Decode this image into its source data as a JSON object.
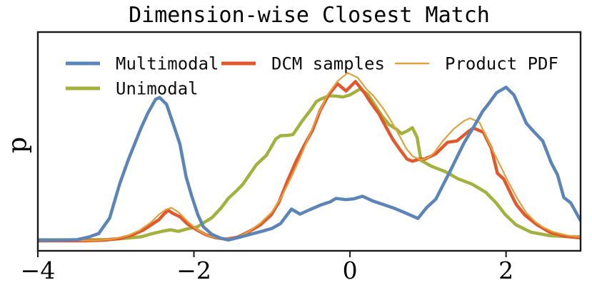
{
  "figure": {
    "background": "#ffffff",
    "axes_edge_color": "#1a1a1a"
  },
  "chart_data": {
    "type": "line",
    "title": "Dimension-wise Closest Match",
    "xlabel": "",
    "ylabel": "p",
    "xlim": [
      -4,
      2.955
    ],
    "ylim": [
      -0.05,
      1.22
    ],
    "xticks_labels": [
      "−4",
      "−2",
      "0",
      "2"
    ],
    "xticks_values": [
      -4,
      -2,
      0,
      2
    ],
    "yticks_labels": [],
    "grid": false,
    "legend_position": "upper left inside, 3 columns, no frame",
    "value_note": "p values normalized 0-1 (no y tick labels shown in figure)",
    "series": [
      {
        "name": "Multimodal",
        "color": "#5b84b8",
        "line_width": 4.5,
        "points": [
          [
            -4.0,
            0.012
          ],
          [
            -3.7,
            0.012
          ],
          [
            -3.5,
            0.014
          ],
          [
            -3.35,
            0.03
          ],
          [
            -3.22,
            0.05
          ],
          [
            -3.08,
            0.14
          ],
          [
            -2.95,
            0.34
          ],
          [
            -2.84,
            0.48
          ],
          [
            -2.68,
            0.66
          ],
          [
            -2.59,
            0.75
          ],
          [
            -2.49,
            0.83
          ],
          [
            -2.44,
            0.84
          ],
          [
            -2.35,
            0.8
          ],
          [
            -2.26,
            0.68
          ],
          [
            -2.18,
            0.57
          ],
          [
            -2.1,
            0.38
          ],
          [
            -2.03,
            0.27
          ],
          [
            -1.95,
            0.16
          ],
          [
            -1.88,
            0.09
          ],
          [
            -1.77,
            0.045
          ],
          [
            -1.65,
            0.022
          ],
          [
            -1.56,
            0.013
          ],
          [
            -1.42,
            0.028
          ],
          [
            -1.28,
            0.045
          ],
          [
            -1.14,
            0.062
          ],
          [
            -1.0,
            0.08
          ],
          [
            -0.89,
            0.108
          ],
          [
            -0.75,
            0.192
          ],
          [
            -0.64,
            0.163
          ],
          [
            -0.52,
            0.188
          ],
          [
            -0.38,
            0.215
          ],
          [
            -0.25,
            0.235
          ],
          [
            -0.18,
            0.254
          ],
          [
            -0.05,
            0.247
          ],
          [
            0.05,
            0.252
          ],
          [
            0.16,
            0.267
          ],
          [
            0.3,
            0.238
          ],
          [
            0.45,
            0.215
          ],
          [
            0.58,
            0.195
          ],
          [
            0.72,
            0.168
          ],
          [
            0.87,
            0.138
          ],
          [
            0.98,
            0.2
          ],
          [
            1.1,
            0.25
          ],
          [
            1.28,
            0.41
          ],
          [
            1.46,
            0.575
          ],
          [
            1.6,
            0.68
          ],
          [
            1.7,
            0.76
          ],
          [
            1.77,
            0.8
          ],
          [
            1.88,
            0.868
          ],
          [
            2.0,
            0.9
          ],
          [
            2.1,
            0.855
          ],
          [
            2.15,
            0.805
          ],
          [
            2.26,
            0.69
          ],
          [
            2.38,
            0.63
          ],
          [
            2.47,
            0.588
          ],
          [
            2.58,
            0.46
          ],
          [
            2.66,
            0.39
          ],
          [
            2.74,
            0.26
          ],
          [
            2.83,
            0.228
          ],
          [
            2.955,
            0.125
          ]
        ]
      },
      {
        "name": "Unimodal",
        "color": "#a2b23d",
        "line_width": 4.5,
        "points": [
          [
            -4.0,
            0.014
          ],
          [
            -3.4,
            0.014
          ],
          [
            -3.1,
            0.015
          ],
          [
            -2.9,
            0.022
          ],
          [
            -2.67,
            0.032
          ],
          [
            -2.56,
            0.047
          ],
          [
            -2.42,
            0.062
          ],
          [
            -2.3,
            0.072
          ],
          [
            -2.2,
            0.063
          ],
          [
            -2.08,
            0.078
          ],
          [
            -1.96,
            0.088
          ],
          [
            -1.85,
            0.12
          ],
          [
            -1.77,
            0.142
          ],
          [
            -1.65,
            0.2
          ],
          [
            -1.56,
            0.254
          ],
          [
            -1.45,
            0.3
          ],
          [
            -1.37,
            0.338
          ],
          [
            -1.2,
            0.45
          ],
          [
            -1.07,
            0.505
          ],
          [
            -0.95,
            0.6
          ],
          [
            -0.89,
            0.618
          ],
          [
            -0.8,
            0.62
          ],
          [
            -0.73,
            0.625
          ],
          [
            -0.61,
            0.705
          ],
          [
            -0.5,
            0.77
          ],
          [
            -0.43,
            0.817
          ],
          [
            -0.38,
            0.83
          ],
          [
            -0.27,
            0.85
          ],
          [
            -0.18,
            0.848
          ],
          [
            -0.09,
            0.843
          ],
          [
            0.0,
            0.855
          ],
          [
            0.13,
            0.89
          ],
          [
            0.23,
            0.858
          ],
          [
            0.32,
            0.796
          ],
          [
            0.41,
            0.733
          ],
          [
            0.5,
            0.683
          ],
          [
            0.59,
            0.658
          ],
          [
            0.66,
            0.63
          ],
          [
            0.73,
            0.645
          ],
          [
            0.8,
            0.665
          ],
          [
            0.86,
            0.608
          ],
          [
            0.91,
            0.475
          ],
          [
            1.05,
            0.44
          ],
          [
            1.22,
            0.41
          ],
          [
            1.39,
            0.367
          ],
          [
            1.56,
            0.338
          ],
          [
            1.74,
            0.29
          ],
          [
            1.87,
            0.23
          ],
          [
            1.99,
            0.16
          ],
          [
            2.13,
            0.1
          ],
          [
            2.32,
            0.058
          ],
          [
            2.56,
            0.038
          ],
          [
            2.75,
            0.033
          ],
          [
            2.955,
            0.032
          ]
        ]
      },
      {
        "name": "DCM samples",
        "color": "#e2582c",
        "line_width": 4.5,
        "points": [
          [
            -4.0,
            0.008
          ],
          [
            -3.4,
            0.008
          ],
          [
            -3.15,
            0.012
          ],
          [
            -2.95,
            0.022
          ],
          [
            -2.8,
            0.04
          ],
          [
            -2.65,
            0.07
          ],
          [
            -2.55,
            0.1
          ],
          [
            -2.45,
            0.13
          ],
          [
            -2.38,
            0.165
          ],
          [
            -2.33,
            0.185
          ],
          [
            -2.26,
            0.165
          ],
          [
            -2.18,
            0.148
          ],
          [
            -2.08,
            0.105
          ],
          [
            -1.95,
            0.068
          ],
          [
            -1.84,
            0.042
          ],
          [
            -1.72,
            0.026
          ],
          [
            -1.58,
            0.018
          ],
          [
            -1.45,
            0.028
          ],
          [
            -1.3,
            0.06
          ],
          [
            -1.15,
            0.1
          ],
          [
            -1.01,
            0.158
          ],
          [
            -0.91,
            0.233
          ],
          [
            -0.85,
            0.3
          ],
          [
            -0.81,
            0.346
          ],
          [
            -0.69,
            0.47
          ],
          [
            -0.58,
            0.567
          ],
          [
            -0.48,
            0.65
          ],
          [
            -0.38,
            0.767
          ],
          [
            -0.27,
            0.858
          ],
          [
            -0.16,
            0.92
          ],
          [
            -0.05,
            0.878
          ],
          [
            0.07,
            0.933
          ],
          [
            0.18,
            0.871
          ],
          [
            0.27,
            0.808
          ],
          [
            0.37,
            0.746
          ],
          [
            0.46,
            0.67
          ],
          [
            0.55,
            0.596
          ],
          [
            0.64,
            0.538
          ],
          [
            0.73,
            0.483
          ],
          [
            0.8,
            0.47
          ],
          [
            0.89,
            0.483
          ],
          [
            0.96,
            0.483
          ],
          [
            1.1,
            0.513
          ],
          [
            1.25,
            0.58
          ],
          [
            1.37,
            0.588
          ],
          [
            1.51,
            0.64
          ],
          [
            1.58,
            0.663
          ],
          [
            1.71,
            0.638
          ],
          [
            1.81,
            0.546
          ],
          [
            1.89,
            0.4
          ],
          [
            1.97,
            0.367
          ],
          [
            2.06,
            0.283
          ],
          [
            2.13,
            0.22
          ],
          [
            2.24,
            0.158
          ],
          [
            2.4,
            0.1
          ],
          [
            2.56,
            0.058
          ],
          [
            2.77,
            0.033
          ],
          [
            2.955,
            0.025
          ]
        ]
      },
      {
        "name": "Product PDF",
        "color": "#dfa33d",
        "line_width": 2.2,
        "points": [
          [
            -4.0,
            0.01
          ],
          [
            -3.3,
            0.01
          ],
          [
            -3.05,
            0.018
          ],
          [
            -2.85,
            0.038
          ],
          [
            -2.7,
            0.068
          ],
          [
            -2.55,
            0.115
          ],
          [
            -2.45,
            0.16
          ],
          [
            -2.36,
            0.19
          ],
          [
            -2.29,
            0.2
          ],
          [
            -2.2,
            0.175
          ],
          [
            -2.08,
            0.12
          ],
          [
            -1.95,
            0.07
          ],
          [
            -1.82,
            0.038
          ],
          [
            -1.68,
            0.022
          ],
          [
            -1.58,
            0.018
          ],
          [
            -1.45,
            0.028
          ],
          [
            -1.3,
            0.06
          ],
          [
            -1.15,
            0.11
          ],
          [
            -1.0,
            0.175
          ],
          [
            -0.88,
            0.26
          ],
          [
            -0.76,
            0.37
          ],
          [
            -0.64,
            0.49
          ],
          [
            -0.52,
            0.62
          ],
          [
            -0.4,
            0.75
          ],
          [
            -0.28,
            0.86
          ],
          [
            -0.16,
            0.935
          ],
          [
            -0.03,
            0.983
          ],
          [
            0.1,
            0.955
          ],
          [
            0.22,
            0.885
          ],
          [
            0.3,
            0.85
          ],
          [
            0.42,
            0.78
          ],
          [
            0.5,
            0.725
          ],
          [
            0.62,
            0.63
          ],
          [
            0.72,
            0.545
          ],
          [
            0.8,
            0.5
          ],
          [
            0.91,
            0.478
          ],
          [
            1.0,
            0.49
          ],
          [
            1.08,
            0.52
          ],
          [
            1.19,
            0.588
          ],
          [
            1.33,
            0.658
          ],
          [
            1.46,
            0.704
          ],
          [
            1.54,
            0.72
          ],
          [
            1.66,
            0.695
          ],
          [
            1.8,
            0.56
          ],
          [
            1.92,
            0.45
          ],
          [
            2.04,
            0.34
          ],
          [
            2.15,
            0.25
          ],
          [
            2.26,
            0.17
          ],
          [
            2.37,
            0.12
          ],
          [
            2.47,
            0.088
          ],
          [
            2.6,
            0.06
          ],
          [
            2.8,
            0.038
          ],
          [
            2.955,
            0.03
          ]
        ]
      }
    ]
  }
}
